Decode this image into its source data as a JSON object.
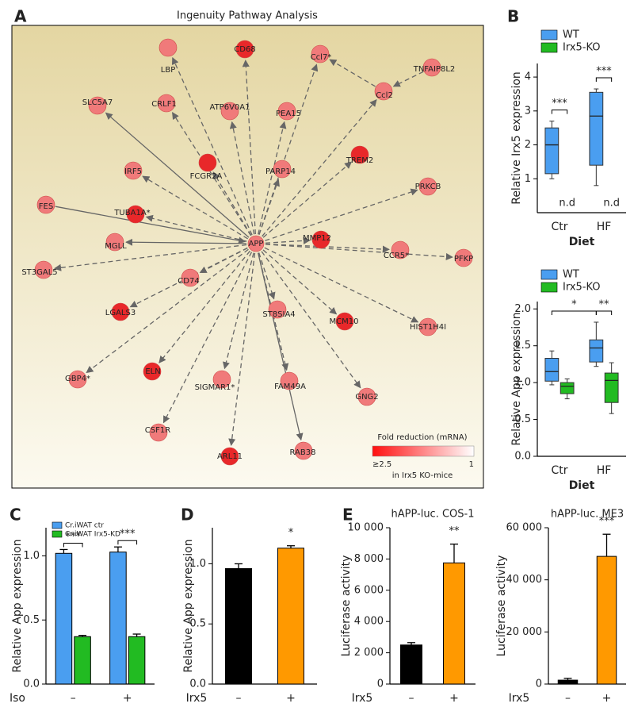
{
  "network": {
    "panel_label": "A",
    "title": "Ingenuity Pathway Analysis",
    "nodes": [
      "LBP",
      "CD68",
      "Ccl7*",
      "TNFAIP8L2",
      "Ccl2",
      "SLC5A7",
      "CRLF1",
      "ATP6V0A1",
      "PEA15",
      "TREM2",
      "IRF5",
      "FCGR2A",
      "PARP14",
      "PRKCB",
      "FES",
      "TUBA1A*",
      "APP",
      "MGLL",
      "MMP12",
      "CCR5*",
      "PFKP",
      "ST3GAL5",
      "CD74",
      "ST8SIA4",
      "LGALS3",
      "MCM10",
      "HIST1H4I",
      "GBP4*",
      "ELN",
      "SIGMAR1*",
      "FAM49A",
      "GNG2",
      "CSF1R",
      "ARL11",
      "RAB38"
    ],
    "legend": {
      "title": "Fold reduction (mRNA)",
      "min_label": "≥2.5",
      "max_label": "1",
      "subtitle": "in Irx5 KO-mice"
    }
  },
  "chart_data": [
    {
      "type": "box",
      "panel_label": "B",
      "ylabel": "Relative Irx5 expression",
      "xlabel": "Diet",
      "categories": [
        "Ctr",
        "HF"
      ],
      "series": [
        {
          "name": "WT",
          "color": "#4a9ef0",
          "values": [
            {
              "min": 1.0,
              "q1": 1.15,
              "median": 2.0,
              "q3": 2.5,
              "max": 2.7
            },
            {
              "min": 0.8,
              "q1": 1.4,
              "median": 2.85,
              "q3": 3.55,
              "max": 3.65
            }
          ]
        },
        {
          "name": "Irx5-KO",
          "color": "#22bb22",
          "values": [
            null,
            null
          ],
          "value_labels": [
            "n.d",
            "n.d"
          ]
        }
      ],
      "ylim": [
        0,
        4.4
      ],
      "yticks": [
        1,
        2,
        3,
        4
      ],
      "brackets": [
        {
          "label": "***",
          "from": {
            "series": "WT",
            "category": "Ctr"
          },
          "to": {
            "series": "Irx5-KO",
            "category": "Ctr"
          }
        },
        {
          "label": "***",
          "from": {
            "series": "WT",
            "category": "HF"
          },
          "to": {
            "series": "Irx5-KO",
            "category": "HF"
          }
        }
      ]
    },
    {
      "type": "box",
      "ylabel": "Relative App expression",
      "xlabel": "Diet",
      "categories": [
        "Ctr",
        "HF"
      ],
      "series": [
        {
          "name": "WT",
          "color": "#4a9ef0",
          "values": [
            {
              "min": 0.97,
              "q1": 1.02,
              "median": 1.15,
              "q3": 1.33,
              "max": 1.43
            },
            {
              "min": 1.22,
              "q1": 1.28,
              "median": 1.47,
              "q3": 1.58,
              "max": 1.82
            }
          ]
        },
        {
          "name": "Irx5-KO",
          "color": "#22bb22",
          "values": [
            {
              "min": 0.78,
              "q1": 0.85,
              "median": 0.95,
              "q3": 1.0,
              "max": 1.05
            },
            {
              "min": 0.58,
              "q1": 0.73,
              "median": 1.03,
              "q3": 1.13,
              "max": 1.27
            }
          ]
        }
      ],
      "ylim": [
        0,
        2.1
      ],
      "yticks": [
        {
          "value": 0,
          "label": "0.0"
        },
        {
          "value": 0.5,
          "label": "0.5"
        },
        {
          "value": 1,
          "label": "1.0"
        },
        {
          "value": 1.5,
          "label": "1.5"
        },
        {
          "value": 2,
          "label": "2.0"
        }
      ],
      "brackets": [
        {
          "label": "*",
          "from": {
            "series": "WT",
            "category": "Ctr"
          },
          "to": {
            "series": "WT",
            "category": "HF"
          }
        },
        {
          "label": "**",
          "from": {
            "series": "WT",
            "category": "HF"
          },
          "to": {
            "series": "Irx5-KO",
            "category": "HF"
          }
        }
      ]
    },
    {
      "type": "bar",
      "panel_label": "C",
      "ylabel": "Relative App expression",
      "xlabel": "Iso",
      "categories": [
        "–",
        "+"
      ],
      "series": [
        {
          "name": "Cr.iWAT ctr",
          "color": "#4a9ef0",
          "values": [
            1.02,
            1.03
          ],
          "errors": [
            0.03,
            0.04
          ]
        },
        {
          "name": "Cr.iWAT Irx5-KD",
          "color": "#22bb22",
          "values": [
            0.37,
            0.37
          ],
          "errors": [
            0.01,
            0.02
          ]
        }
      ],
      "significance": [
        "***",
        "***"
      ],
      "ylim": [
        0,
        1.22
      ],
      "yticks": [
        {
          "value": 0,
          "label": "0.0"
        },
        {
          "value": 0.5,
          "label": "0.5"
        },
        {
          "value": 1,
          "label": "1.0"
        }
      ]
    },
    {
      "type": "bar",
      "panel_label": "D",
      "ylabel": "Relative App expression",
      "xlabel": "Irx5",
      "categories": [
        "–",
        "+"
      ],
      "values": [
        0.96,
        1.13
      ],
      "errors": [
        0.04,
        0.02
      ],
      "colors": [
        "#000000",
        "#ff9900"
      ],
      "significance": [
        null,
        "*"
      ],
      "ylim": [
        0,
        1.3
      ],
      "yticks": [
        {
          "value": 0,
          "label": "0.0"
        },
        {
          "value": 0.5,
          "label": "0.5"
        },
        {
          "value": 1,
          "label": "1.0"
        }
      ]
    },
    {
      "type": "bar",
      "panel_label": "E",
      "title": "hAPP-luc. COS-1",
      "ylabel": "Luciferase activity",
      "xlabel": "Irx5",
      "categories": [
        "–",
        "+"
      ],
      "values": [
        2500,
        7750
      ],
      "errors": [
        150,
        1200
      ],
      "colors": [
        "#000000",
        "#ff9900"
      ],
      "significance": [
        null,
        "**"
      ],
      "ylim": [
        0,
        10000
      ],
      "yticks": [
        0,
        {
          "value": 2000,
          "label": "2 000"
        },
        {
          "value": 4000,
          "label": "4 000"
        },
        {
          "value": 6000,
          "label": "6 000"
        },
        {
          "value": 8000,
          "label": "8 000"
        },
        {
          "value": 10000,
          "label": "10 000"
        }
      ]
    },
    {
      "type": "bar",
      "title": "hAPP-luc. ME3",
      "ylabel": "Luciferase activity",
      "xlabel": "Irx5",
      "categories": [
        "–",
        "+"
      ],
      "values": [
        1500,
        49000
      ],
      "errors": [
        700,
        8500
      ],
      "colors": [
        "#000000",
        "#ff9900"
      ],
      "significance": [
        null,
        "***"
      ],
      "ylim": [
        0,
        60000
      ],
      "yticks": [
        0,
        {
          "value": 20000,
          "label": "20 000"
        },
        {
          "value": 40000,
          "label": "40 000"
        },
        {
          "value": 60000,
          "label": "60 000"
        }
      ]
    }
  ]
}
